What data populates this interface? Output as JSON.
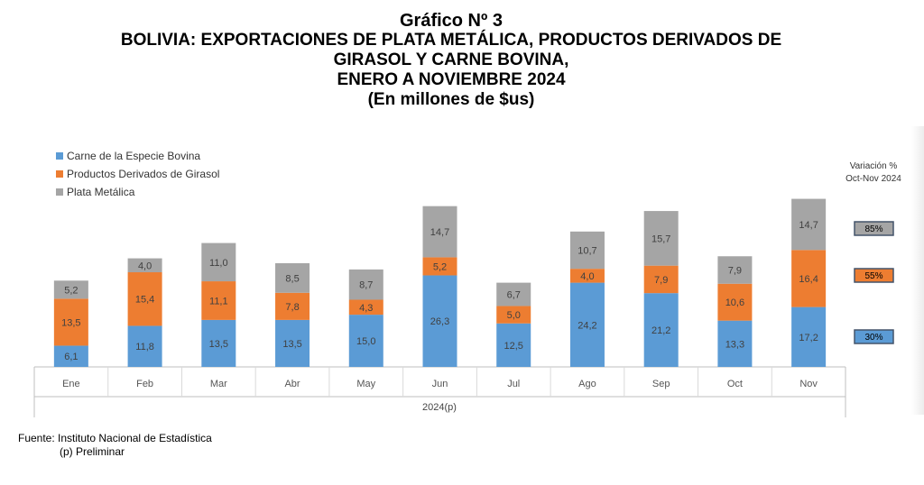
{
  "title": {
    "line1": "Gráfico Nº 3",
    "line2": "BOLIVIA: EXPORTACIONES DE PLATA METÁLICA, PRODUCTOS DERIVADOS DE",
    "line3": "GIRASOL Y CARNE BOVINA,",
    "line4": "ENERO A NOVIEMBRE 2024",
    "line5": "(En millones de $us)"
  },
  "legend": [
    {
      "label": "Carne de la Especie Bovina",
      "color": "#5b9bd5"
    },
    {
      "label": "Productos Derivados de Girasol",
      "color": "#ed7d31"
    },
    {
      "label": "Plata Metálica",
      "color": "#a5a5a5"
    }
  ],
  "variation": {
    "title_line1": "Variación %",
    "title_line2": "Oct-Nov 2024",
    "boxes": [
      {
        "label": "85%",
        "color": "#a5a5a5"
      },
      {
        "label": "55%",
        "color": "#ed7d31"
      },
      {
        "label": "30%",
        "color": "#5b9bd5"
      }
    ]
  },
  "source": {
    "line1": "Fuente: Instituto Nacional de Estadística",
    "line2": "(p) Preliminar"
  },
  "chart_data": {
    "type": "bar",
    "stacked": true,
    "categories": [
      "Ene",
      "Feb",
      "Mar",
      "Abr",
      "May",
      "Jun",
      "Jul",
      "Ago",
      "Sep",
      "Oct",
      "Nov"
    ],
    "xlabel": "2024(p)",
    "ylabel": "",
    "ylim": [
      0,
      52
    ],
    "series": [
      {
        "name": "Carne de la Especie Bovina",
        "color": "#5b9bd5",
        "values": [
          6.1,
          11.8,
          13.5,
          13.5,
          15.0,
          26.3,
          12.5,
          24.2,
          21.2,
          13.3,
          17.2
        ],
        "labels": [
          "6,1",
          "11,8",
          "13,5",
          "13,5",
          "15,0",
          "26,3",
          "12,5",
          "24,2",
          "21,2",
          "13,3",
          "17,2"
        ]
      },
      {
        "name": "Productos Derivados de Girasol",
        "color": "#ed7d31",
        "values": [
          13.5,
          15.4,
          11.1,
          7.8,
          4.3,
          5.2,
          5.0,
          4.0,
          7.9,
          10.6,
          16.4
        ],
        "labels": [
          "13,5",
          "15,4",
          "11,1",
          "7,8",
          "4,3",
          "5,2",
          "5,0",
          "4,0",
          "7,9",
          "10,6",
          "16,4"
        ]
      },
      {
        "name": "Plata Metálica",
        "color": "#a5a5a5",
        "values": [
          5.2,
          4.0,
          11.0,
          8.5,
          8.7,
          14.7,
          6.7,
          10.7,
          15.7,
          7.9,
          14.7
        ],
        "labels": [
          "5,2",
          "4,0",
          "11,0",
          "8,5",
          "8,7",
          "14,7",
          "6,7",
          "10,7",
          "15,7",
          "7,9",
          "14,7"
        ]
      }
    ],
    "legend_position": "top-left",
    "grid": false
  }
}
